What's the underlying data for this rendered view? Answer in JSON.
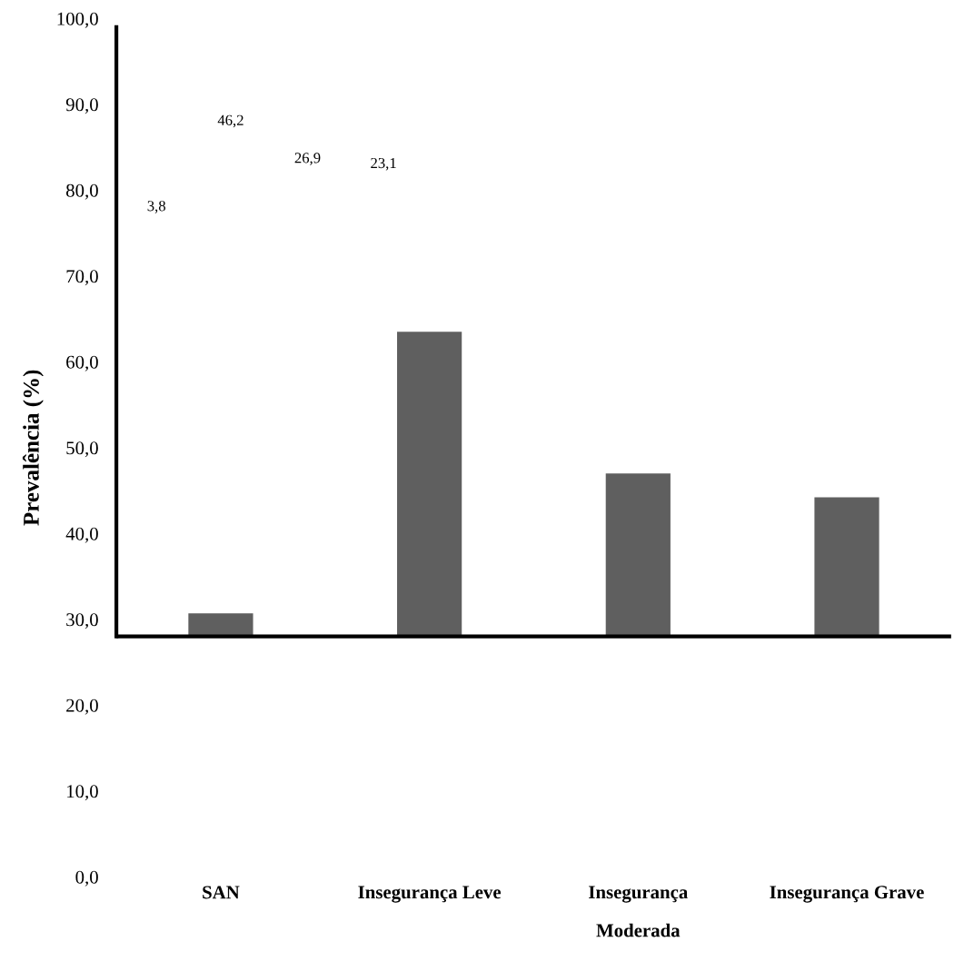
{
  "chart_data": {
    "type": "bar",
    "ylabel": "Prevalência (%)",
    "categories": [
      "SAN",
      "Insegurança Leve",
      "Insegurança Moderada",
      "Insegurança Grave"
    ],
    "values": [
      2.7,
      35.5,
      19.0,
      16.2
    ],
    "base": [
      28,
      28,
      28,
      28
    ],
    "color": "#5f5f5f",
    "ylim": [
      0,
      100
    ],
    "yticks": [
      {
        "value": 0,
        "label": "0,0"
      },
      {
        "value": 10,
        "label": "10,0"
      },
      {
        "value": 20,
        "label": "20,0"
      },
      {
        "value": 30,
        "label": "30,0"
      },
      {
        "value": 40,
        "label": "40,0"
      },
      {
        "value": 50,
        "label": "50,0"
      },
      {
        "value": 60,
        "label": "60,0"
      },
      {
        "value": 70,
        "label": "70,0"
      },
      {
        "value": 80,
        "label": "80,0"
      },
      {
        "value": 90,
        "label": "90,0"
      },
      {
        "value": 100,
        "label": "100,0"
      }
    ],
    "annotations": [
      "3,8",
      "46,2",
      "26,9",
      "23,1"
    ],
    "ref_lines": [
      {
        "axis": "y",
        "value": 28,
        "color": "#000000"
      }
    ],
    "grid": false
  }
}
